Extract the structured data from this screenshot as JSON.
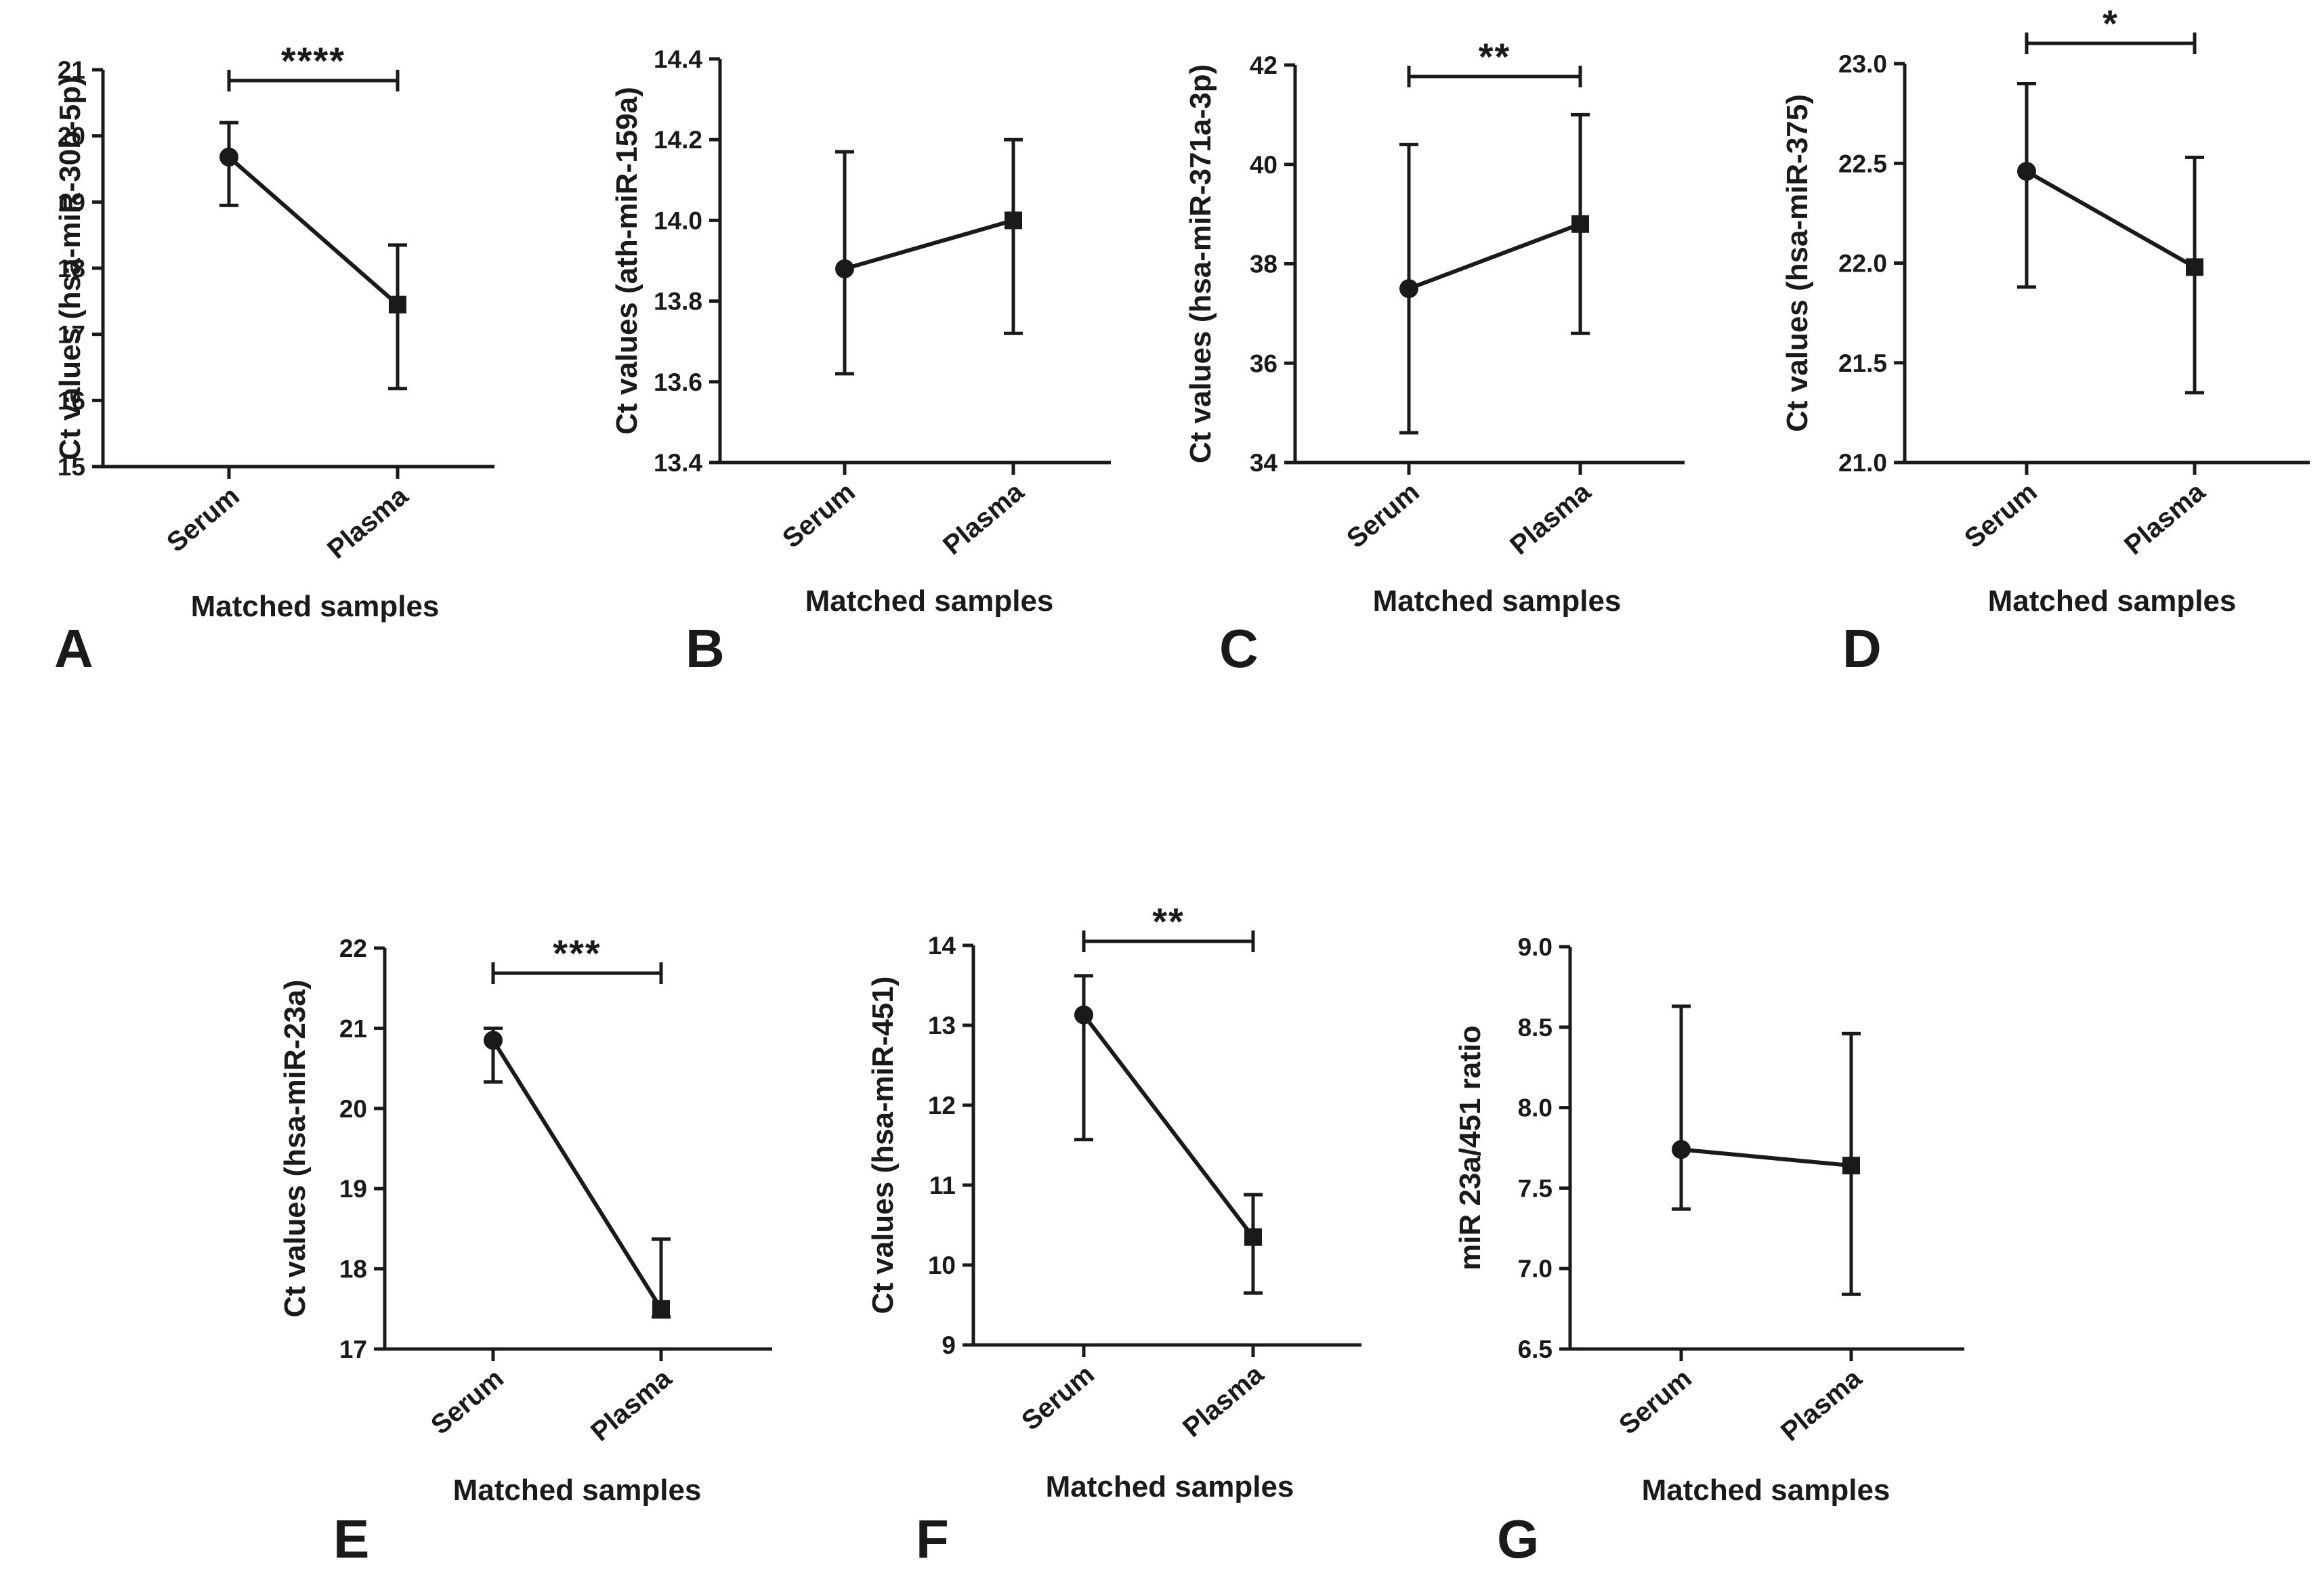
{
  "figure_title": "",
  "chart_data": [
    {
      "type": "line",
      "panel": "A",
      "title": "",
      "xlabel": "Matched samples",
      "ylabel": "Ct values (hsa-miR-30b-5p)",
      "categories": [
        "Serum",
        "Plasma"
      ],
      "ylim": [
        15,
        21
      ],
      "yticks": [
        "15",
        "16",
        "17",
        "18",
        "19",
        "20",
        "21"
      ],
      "values": [
        19.68,
        17.45
      ],
      "error_low": [
        18.95,
        16.18
      ],
      "error_high": [
        20.2,
        18.35
      ],
      "markers": [
        "circle",
        "square"
      ],
      "significance": "****"
    },
    {
      "type": "line",
      "panel": "B",
      "title": "",
      "xlabel": "Matched samples",
      "ylabel": "Ct values (ath-miR-159a)",
      "categories": [
        "Serum",
        "Plasma"
      ],
      "ylim": [
        13.4,
        14.4
      ],
      "yticks": [
        "13.4",
        "13.6",
        "13.8",
        "14.0",
        "14.2",
        "14.4"
      ],
      "values": [
        13.88,
        14.0
      ],
      "error_low": [
        13.62,
        13.72
      ],
      "error_high": [
        14.17,
        14.2
      ],
      "markers": [
        "circle",
        "square"
      ],
      "significance": ""
    },
    {
      "type": "line",
      "panel": "C",
      "title": "",
      "xlabel": "Matched samples",
      "ylabel": "Ct values (hsa-miR-371a-3p)",
      "categories": [
        "Serum",
        "Plasma"
      ],
      "ylim": [
        34,
        42
      ],
      "yticks": [
        "34",
        "36",
        "38",
        "40",
        "42"
      ],
      "values": [
        37.5,
        38.8
      ],
      "error_low": [
        34.6,
        36.6
      ],
      "error_high": [
        40.4,
        41.0
      ],
      "markers": [
        "circle",
        "square"
      ],
      "significance": "**"
    },
    {
      "type": "line",
      "panel": "D",
      "title": "",
      "xlabel": "Matched samples",
      "ylabel": "Ct values (hsa-miR-375)",
      "categories": [
        "Serum",
        "Plasma"
      ],
      "ylim": [
        21.0,
        23.0
      ],
      "yticks": [
        "21.0",
        "21.5",
        "22.0",
        "22.5",
        "23.0"
      ],
      "values": [
        22.46,
        21.98
      ],
      "error_low": [
        21.88,
        21.35
      ],
      "error_high": [
        22.9,
        22.53
      ],
      "markers": [
        "circle",
        "square"
      ],
      "significance": "*"
    },
    {
      "type": "line",
      "panel": "E",
      "title": "",
      "xlabel": "Matched samples",
      "ylabel": "Ct values (hsa-miR-23a)",
      "categories": [
        "Serum",
        "Plasma"
      ],
      "ylim": [
        17,
        22
      ],
      "yticks": [
        "17",
        "18",
        "19",
        "20",
        "21",
        "22"
      ],
      "values": [
        20.85,
        17.5
      ],
      "error_low": [
        20.33,
        17.4
      ],
      "error_high": [
        21.0,
        18.37
      ],
      "markers": [
        "circle",
        "square"
      ],
      "significance": "***"
    },
    {
      "type": "line",
      "panel": "F",
      "title": "",
      "xlabel": "Matched samples",
      "ylabel": "Ct values (hsa-miR-451)",
      "categories": [
        "Serum",
        "Plasma"
      ],
      "ylim": [
        9,
        14
      ],
      "yticks": [
        "9",
        "10",
        "11",
        "12",
        "13",
        "14"
      ],
      "values": [
        13.13,
        10.35
      ],
      "error_low": [
        11.57,
        9.65
      ],
      "error_high": [
        13.62,
        10.88
      ],
      "markers": [
        "circle",
        "square"
      ],
      "significance": "**"
    },
    {
      "type": "line",
      "panel": "G",
      "title": "",
      "xlabel": "Matched samples",
      "ylabel": "miR 23a/451 ratio",
      "categories": [
        "Serum",
        "Plasma"
      ],
      "ylim": [
        6.5,
        9.0
      ],
      "yticks": [
        "6.5",
        "7.0",
        "7.5",
        "8.0",
        "8.5",
        "9.0"
      ],
      "values": [
        7.74,
        7.64
      ],
      "error_low": [
        7.37,
        6.84
      ],
      "error_high": [
        8.63,
        8.46
      ],
      "markers": [
        "circle",
        "square"
      ],
      "significance": ""
    }
  ],
  "colors": {
    "ink": "#1a1a1a",
    "background": "#ffffff"
  }
}
